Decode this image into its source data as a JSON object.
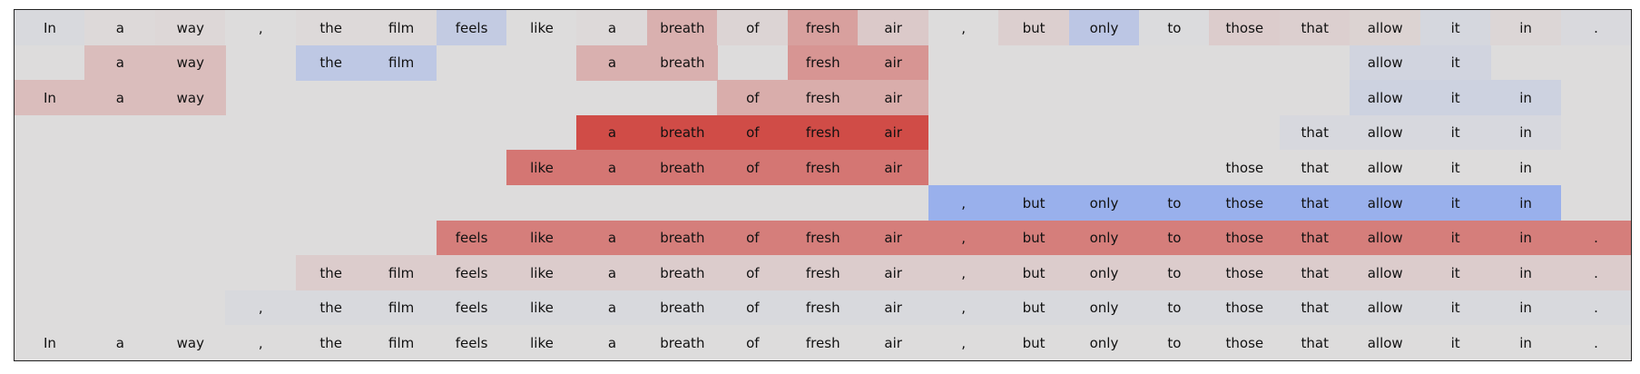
{
  "chart_data": {
    "type": "heatmap",
    "title": "",
    "tokens": [
      "In",
      "a",
      "way",
      ",",
      "the",
      "film",
      "feels",
      "like",
      "a",
      "breath",
      "of",
      "fresh",
      "air",
      ",",
      "but",
      "only",
      "to",
      "those",
      "that",
      "allow",
      "it",
      "in",
      "."
    ],
    "rows": [
      [
        -0.05,
        0.02,
        0.03,
        0,
        0.02,
        0.02,
        -0.25,
        0,
        0.02,
        0.28,
        0.05,
        0.38,
        0.12,
        0,
        0.08,
        -0.32,
        -0.02,
        0.1,
        0.08,
        0.06,
        -0.08,
        0.04,
        -0.04
      ],
      [
        null,
        0.2,
        0.2,
        null,
        -0.3,
        -0.3,
        null,
        null,
        0.28,
        0.28,
        null,
        0.45,
        0.45,
        null,
        null,
        null,
        null,
        null,
        null,
        -0.12,
        -0.12,
        null,
        null
      ],
      [
        0.2,
        0.2,
        0.2,
        null,
        null,
        null,
        null,
        null,
        null,
        null,
        0.3,
        0.3,
        0.3,
        null,
        null,
        null,
        null,
        null,
        null,
        -0.15,
        -0.15,
        -0.15,
        null
      ],
      [
        null,
        null,
        null,
        null,
        null,
        null,
        null,
        null,
        0.92,
        0.92,
        0.92,
        0.92,
        0.92,
        null,
        null,
        null,
        null,
        null,
        -0.06,
        -0.06,
        -0.06,
        -0.06,
        null
      ],
      [
        null,
        null,
        null,
        null,
        null,
        null,
        null,
        0.65,
        0.65,
        0.65,
        0.65,
        0.65,
        0.65,
        null,
        null,
        null,
        null,
        0,
        0,
        0,
        0,
        0,
        null
      ],
      [
        null,
        null,
        null,
        null,
        null,
        null,
        null,
        null,
        null,
        null,
        null,
        null,
        null,
        -0.65,
        -0.65,
        -0.65,
        -0.65,
        -0.65,
        -0.65,
        -0.65,
        -0.65,
        -0.65,
        null
      ],
      [
        null,
        null,
        null,
        null,
        null,
        null,
        0.6,
        0.6,
        0.6,
        0.6,
        0.6,
        0.6,
        0.6,
        0.6,
        0.6,
        0.6,
        0.6,
        0.6,
        0.6,
        0.6,
        0.6,
        0.6,
        0.6
      ],
      [
        null,
        null,
        null,
        null,
        0.1,
        0.1,
        0.1,
        0.1,
        0.1,
        0.1,
        0.1,
        0.1,
        0.1,
        0.1,
        0.1,
        0.1,
        0.1,
        0.1,
        0.1,
        0.1,
        0.1,
        0.1,
        0.1
      ],
      [
        null,
        null,
        null,
        -0.05,
        -0.05,
        -0.05,
        -0.05,
        -0.05,
        -0.05,
        -0.05,
        -0.05,
        -0.05,
        -0.05,
        -0.05,
        -0.05,
        -0.05,
        -0.05,
        -0.05,
        -0.05,
        -0.05,
        -0.05,
        -0.05,
        -0.05
      ],
      [
        0,
        0,
        0,
        0,
        0,
        0,
        0,
        0,
        0,
        0,
        0,
        0,
        0,
        0,
        0,
        0,
        0,
        0,
        0,
        0,
        0,
        0,
        0
      ]
    ],
    "colormap": {
      "negative": "#7598f5",
      "neutral": "#dddcdc",
      "positive": "#cf3f3a"
    },
    "grid": false
  }
}
